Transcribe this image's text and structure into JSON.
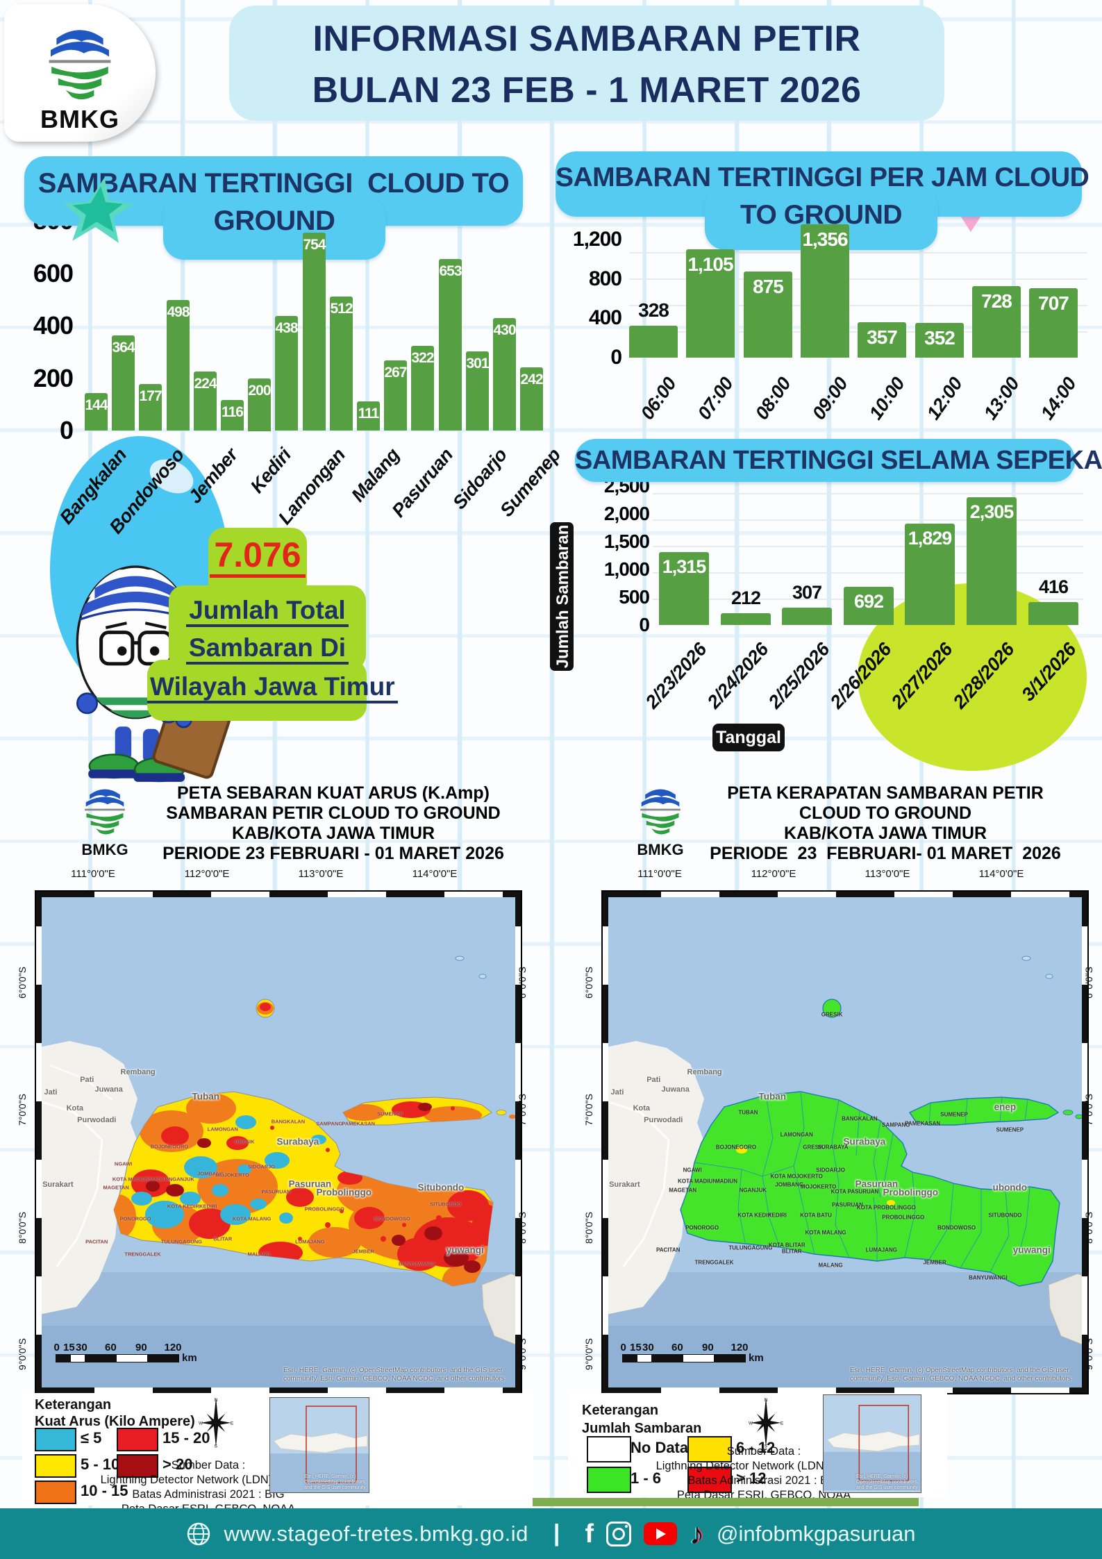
{
  "header": {
    "logo_text": "BMKG",
    "title_line1": "INFORMASI SAMBARAN PETIR",
    "title_line2": "BULAN 23 FEB - 1 MARET 2026"
  },
  "total_callout": {
    "value": "7.076",
    "line1": "Jumlah Total",
    "line2": "Sambaran Di",
    "line3": "Wilayah Jawa Timur"
  },
  "chart_data": [
    {
      "type": "bar",
      "title": "SAMBARAN TERTINGGI  CLOUD TO GROUND",
      "title_line1": "SAMBARAN TERTINGGI  CLOUD TO",
      "title_line2": "GROUND",
      "values": [
        144,
        364,
        177,
        498,
        224,
        116,
        200,
        438,
        754,
        512,
        111,
        267,
        322,
        653,
        301,
        430,
        242
      ],
      "bar_labels": [
        "144",
        "364",
        "177",
        "498",
        "224",
        "116",
        "200",
        "438",
        "754",
        "512",
        "111",
        "267",
        "322",
        "653",
        "301",
        "430",
        "242"
      ],
      "x_tick_labels": [
        "Bangkalan",
        "Bondowoso",
        "Jember",
        "Kediri",
        "Lamongan",
        "Malang",
        "Pasuruan",
        "Sidoarjo",
        "Sumenep"
      ],
      "y_ticks": [
        "800",
        "600",
        "400",
        "200",
        "0"
      ],
      "y_tick_values": [
        800,
        600,
        400,
        200,
        0
      ],
      "ylim": [
        0,
        800
      ],
      "bar_color": "#579f43"
    },
    {
      "type": "bar",
      "title": "SAMBARAN TERTINGGI PER JAM CLOUD TO GROUND",
      "title_line1": "SAMBARAN TERTINGGI PER JAM CLOUD",
      "title_line2": "TO GROUND",
      "categories": [
        "06:00",
        "07:00",
        "08:00",
        "09:00",
        "10:00",
        "12:00",
        "13:00",
        "14:00"
      ],
      "values": [
        328,
        1105,
        875,
        1356,
        357,
        352,
        728,
        707
      ],
      "bar_labels": [
        "328",
        "1,105",
        "875",
        "1,356",
        "357",
        "352",
        "728",
        "707"
      ],
      "label_outside": [
        true,
        false,
        false,
        false,
        false,
        false,
        false,
        false
      ],
      "y_ticks": [
        "1,200",
        "800",
        "400",
        "0"
      ],
      "y_tick_values": [
        1200,
        800,
        400,
        0
      ],
      "ylim": [
        0,
        1400
      ],
      "bar_color": "#579f43"
    },
    {
      "type": "bar",
      "title": "SAMBARAN TERTINGGI SELAMA SEPEKAN",
      "categories": [
        "2/23/2026",
        "2/24/2026",
        "2/25/2026",
        "2/26/2026",
        "2/27/2026",
        "2/28/2026",
        "3/1/2026"
      ],
      "values": [
        1315,
        212,
        307,
        692,
        1829,
        2305,
        416
      ],
      "bar_labels": [
        "1,315",
        "212",
        "307",
        "692",
        "1,829",
        "2,305",
        "416"
      ],
      "label_outside": [
        false,
        true,
        true,
        false,
        false,
        false,
        true
      ],
      "xlabel": "Tanggal",
      "ylabel": "Jumlah Sambaran",
      "y_ticks": [
        "2,500",
        "2,000",
        "1,500",
        "1,000",
        "500",
        "0"
      ],
      "y_tick_values": [
        2500,
        2000,
        1500,
        1000,
        500,
        0
      ],
      "ylim": [
        0,
        2500
      ],
      "bar_color": "#579f43"
    }
  ],
  "maps": {
    "left": {
      "logo_text": "BMKG",
      "title_lines": [
        "PETA SEBARAN KUAT ARUS (K.Amp)",
        "SAMBARAN PETIR CLOUD TO GROUND",
        "KAB/KOTA JAWA TIMUR",
        "PERIODE 23 FEBRUARI - 01 MARET 2026"
      ],
      "lon_labels": [
        "111°0'0\"E",
        "112°0'0\"E",
        "113°0'0\"E",
        "114°0'0\"E"
      ],
      "lat_labels": [
        "6°0'0\"S",
        "7°0'0\"S",
        "8°0'0\"S",
        "9°0'0\"S"
      ],
      "scale_ticks": [
        "0",
        "15",
        "30",
        "60",
        "90",
        "120"
      ],
      "scale_unit": "km",
      "attribution": "Esri, HERE, Garmin, (c) OpenStreetMap contributors, and the GIS user community, Esri, Garmin, GEBCO, NOAA NGDC, and other contributors",
      "legend_title_line1": "Keterangan",
      "legend_title_line2": "Kuat Arus (Kilo Ampere)",
      "legend_items": [
        {
          "color": "#35b9d9",
          "label": "≤ 5"
        },
        {
          "color": "#ffe800",
          "label": "5 - 10"
        },
        {
          "color": "#ef7218",
          "label": "10 - 15"
        },
        {
          "color": "#e81c24",
          "label": "15 - 20"
        },
        {
          "color": "#a50e13",
          "label": "> 20"
        }
      ],
      "source_lines": [
        "Sumber Data :",
        "Lightning Detector Network (LDN) - BMKG",
        "Batas Administrasi 2021  : BIG",
        "Peta Dasar ESRI, GEBCO, NOAA"
      ],
      "inset_attribution": "Esri, HERE, Garmin, (c) OpenStreetMap contributors, and the GIS user community",
      "labels": [
        [
          "Pati",
          10.5,
          37.5,
          "town"
        ],
        [
          "Juwana",
          15,
          39.5,
          "town"
        ],
        [
          "Rembang",
          21,
          36,
          "town"
        ],
        [
          "Jati",
          3,
          40,
          "town"
        ],
        [
          "Kota",
          8,
          43.2,
          "town"
        ],
        [
          "Purwodadi",
          12.5,
          45.5,
          "town"
        ],
        [
          "Surakart",
          4.5,
          58.5,
          "town"
        ],
        [
          "Tuban",
          35,
          40.8,
          "city"
        ],
        [
          "Surabaya",
          54,
          49.8,
          "city"
        ],
        [
          "Pasuruan",
          56.5,
          58.3,
          "city"
        ],
        [
          "Probolinggo",
          63.5,
          60,
          "city"
        ],
        [
          "Situbondo",
          83.5,
          59,
          "city"
        ],
        [
          "yuwangi",
          88.5,
          71.5,
          "city"
        ],
        [
          "BANGKALAN",
          52,
          45.8,
          "reg"
        ],
        [
          "SAMPANG",
          60.5,
          46.3,
          "reg"
        ],
        [
          "PAMEKASAN",
          66.5,
          46.3,
          "reg"
        ],
        [
          "SUMENEP",
          73,
          44.3,
          "reg"
        ],
        [
          "BOJONEGORO",
          27.5,
          50.8,
          "reg"
        ],
        [
          "LAMONGAN",
          38.5,
          47.3,
          "reg"
        ],
        [
          "NGAWI",
          18,
          54.3,
          "reg"
        ],
        [
          "KOTA MADIUN",
          19.5,
          57.3,
          "reg"
        ],
        [
          "MADIUN",
          25.5,
          57.3,
          "reg"
        ],
        [
          "MAGETAN",
          16.5,
          59,
          "reg"
        ],
        [
          "NGANJUK",
          30,
          57.3,
          "reg"
        ],
        [
          "KOTA KEDIRI",
          30.5,
          62.8,
          "reg"
        ],
        [
          "KEDIRI",
          35.5,
          62.8,
          "reg"
        ],
        [
          "PONOROGO",
          20.5,
          65.3,
          "reg"
        ],
        [
          "PACITAN",
          12.5,
          69.8,
          "reg"
        ],
        [
          "TRENGGALEK",
          22,
          72.3,
          "reg"
        ],
        [
          "TULUNGAGUNG",
          30,
          69.8,
          "reg"
        ],
        [
          "BLITAR",
          38.5,
          69.3,
          "reg"
        ],
        [
          "KOTA MALANG",
          44.5,
          65.3,
          "reg"
        ],
        [
          "MALANG",
          46,
          72.3,
          "reg"
        ],
        [
          "LUMAJANG",
          56.5,
          69.8,
          "reg"
        ],
        [
          "JEMBER",
          67.5,
          71.8,
          "reg"
        ],
        [
          "BANYUWANGI",
          78.5,
          74.3,
          "reg"
        ],
        [
          "BONDOWOSO",
          73.5,
          65.3,
          "reg"
        ],
        [
          "SITUBONDO",
          84.5,
          62.3,
          "reg"
        ],
        [
          "SIDOARJO",
          46.5,
          54.8,
          "reg"
        ],
        [
          "PASURUAN",
          49.5,
          59.8,
          "reg"
        ],
        [
          "PROBOLINGGO",
          59.5,
          63.3,
          "reg"
        ],
        [
          "GRESIK",
          43,
          49.8,
          "reg"
        ],
        [
          "JOMBANG",
          36,
          56.3,
          "reg"
        ],
        [
          "MOJOKERTO",
          40.5,
          56.5,
          "reg"
        ]
      ]
    },
    "right": {
      "logo_text": "BMKG",
      "title_lines": [
        "PETA KERAPATAN SAMBARAN PETIR",
        "CLOUD TO GROUND",
        "KAB/KOTA JAWA TIMUR",
        "PERIODE  23  FEBRUARI- 01 MARET  2026"
      ],
      "lon_labels": [
        "111°0'0\"E",
        "112°0'0\"E",
        "113°0'0\"E",
        "114°0'0\"E"
      ],
      "lat_labels": [
        "6°0'0\"S",
        "7°0'0\"S",
        "8°0'0\"S",
        "9°0'0\"S"
      ],
      "scale_ticks": [
        "0",
        "15",
        "30",
        "60",
        "90",
        "120"
      ],
      "scale_unit": "km",
      "attribution": "Esri, HERE, Garmin, (c) OpenStreetMap contributors, and the GIS user community, Esri, Garmin, GEBCO, NOAA NGDC, and other contributors",
      "legend_title_line1": "Keterangan",
      "legend_title_line2": "Jumlah Sambaran",
      "legend_items": [
        {
          "color": "#ffffff",
          "label": "No Data"
        },
        {
          "color": "#3ce426",
          "label": "1 - 6"
        },
        {
          "color": "#ffe000",
          "label": "6 - 12"
        },
        {
          "color": "#e80c12",
          "label": "> 12"
        }
      ],
      "source_lines": [
        "Sumber Data :",
        "Ligthning Detector Network (LDN) - BMKG",
        "Batas Administrasi 2021  : BIG",
        "Peta Dasar ESRI, GEBCO, NOAA"
      ],
      "inset_attribution": "Esri, HERE, Garmin, (c) OpenStreetMap contributors, and the GIS user community",
      "labels": [
        [
          "Pati",
          10.5,
          37.5,
          "town"
        ],
        [
          "Juwana",
          15,
          39.5,
          "town"
        ],
        [
          "Rembang",
          21,
          36,
          "town"
        ],
        [
          "Jati",
          3,
          40,
          "town"
        ],
        [
          "Kota",
          8,
          43.2,
          "town"
        ],
        [
          "Purwodadi",
          12.5,
          45.5,
          "town"
        ],
        [
          "Surakart",
          4.5,
          58.5,
          "town"
        ],
        [
          "Tuban",
          35,
          40.8,
          "city"
        ],
        [
          "Surabaya",
          54,
          49.8,
          "city"
        ],
        [
          "Pasuruan",
          56.5,
          58.3,
          "city"
        ],
        [
          "Probolinggo",
          63.5,
          60,
          "city"
        ],
        [
          "ubondo",
          84,
          59,
          "city"
        ],
        [
          "yuwangi",
          88.5,
          71.5,
          "city"
        ],
        [
          "enep",
          83,
          43,
          "city"
        ],
        [
          "TUBAN",
          30,
          44,
          "blk"
        ],
        [
          "LAMONGAN",
          40,
          48.5,
          "blk"
        ],
        [
          "BOJONEGORO",
          27.5,
          51,
          "blk"
        ],
        [
          "NGAWI",
          18.5,
          55.5,
          "blk"
        ],
        [
          "KOTA MADIUN",
          19.5,
          57.8,
          "blk"
        ],
        [
          "MADIUN",
          25.5,
          57.8,
          "blk"
        ],
        [
          "MAGETAN",
          16.5,
          59.5,
          "blk"
        ],
        [
          "NGANJUK",
          31,
          59.5,
          "blk"
        ],
        [
          "JOMBANG",
          38.5,
          58.5,
          "blk"
        ],
        [
          "KOTA MOJOKERTO",
          40,
          56.8,
          "blk"
        ],
        [
          "MOJOKERTO",
          44.5,
          58.8,
          "blk"
        ],
        [
          "GRESIK",
          43.5,
          51,
          "blk"
        ],
        [
          "SURABAYA",
          47.5,
          51,
          "blk"
        ],
        [
          "SIDOARJO",
          47,
          55.5,
          "blk"
        ],
        [
          "BANGKALAN",
          53,
          45.3,
          "blk"
        ],
        [
          "SAMPANG",
          60.5,
          46.5,
          "blk"
        ],
        [
          "PAMEKASAN",
          66,
          46.3,
          "blk"
        ],
        [
          "SUMENEP",
          72.5,
          44.5,
          "blk"
        ],
        [
          "SUMENEP",
          84,
          47.5,
          "blk"
        ],
        [
          "KOTA KEDIRI",
          31.5,
          64.5,
          "blk"
        ],
        [
          "KEDIRI",
          36,
          64.5,
          "blk"
        ],
        [
          "KOTA BATU",
          44,
          64.5,
          "blk"
        ],
        [
          "PASURUAN",
          50.5,
          62.5,
          "blk"
        ],
        [
          "KOTA PASURUAN",
          52,
          59.8,
          "blk"
        ],
        [
          "PROBOLINGGO",
          62,
          65,
          "blk"
        ],
        [
          "KOTA PROBOLINGGO",
          58.5,
          63,
          "blk"
        ],
        [
          "PONOROGO",
          20.5,
          67,
          "blk"
        ],
        [
          "PACITAN",
          13.5,
          71.5,
          "blk"
        ],
        [
          "TRENGGALEK",
          23,
          74,
          "blk"
        ],
        [
          "TULUNGAGUNG",
          30.5,
          71,
          "blk"
        ],
        [
          "KOTA BLITAR",
          38,
          70.5,
          "blk"
        ],
        [
          "BLITAR",
          39,
          71.8,
          "blk"
        ],
        [
          "KOTA MALANG",
          46,
          68,
          "blk"
        ],
        [
          "MALANG",
          47,
          74.5,
          "blk"
        ],
        [
          "LUMAJANG",
          57.5,
          71.5,
          "blk"
        ],
        [
          "BONDOWOSO",
          73,
          67,
          "blk"
        ],
        [
          "SITUBONDO",
          83,
          64.5,
          "blk"
        ],
        [
          "JEMBER",
          68.5,
          74,
          "blk"
        ],
        [
          "BANYUWANGI",
          79.5,
          77,
          "blk"
        ],
        [
          "GRESIK",
          47.3,
          24.5,
          "blk"
        ]
      ]
    }
  },
  "footer": {
    "website": "www.stageof-tretes.bmkg.go.id",
    "separator": "|",
    "handle": "@infobmkgpasuruan"
  },
  "colors": {
    "bar_green": "#579f43",
    "chip_blue": "#55cbf1",
    "header_chip": "#cdeef7",
    "navy_text": "#1c3364",
    "callout_green": "#a5d829",
    "accent_red": "#e3241b",
    "footer_teal": "#11898f",
    "lime_circle": "#c8e52c",
    "blue_circle": "#49c7f2"
  }
}
